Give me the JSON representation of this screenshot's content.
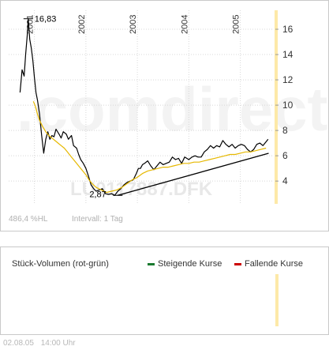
{
  "chart_data": {
    "type": "line",
    "x_ticks": [
      "2001",
      "2002",
      "2003",
      "2004",
      "2005"
    ],
    "y_ticks": [
      4,
      6,
      8,
      10,
      12,
      14,
      16
    ],
    "ylim": [
      2.2,
      17.5
    ],
    "xlim": [
      2000.5,
      2005.65
    ],
    "series": [
      {
        "color": "#000000",
        "x": [
          2000.72,
          2000.76,
          2000.8,
          2000.83,
          2000.86,
          2000.88,
          2000.91,
          2000.94,
          2000.97,
          2001.0,
          2001.03,
          2001.06,
          2001.1,
          2001.14,
          2001.18,
          2001.22,
          2001.26,
          2001.3,
          2001.34,
          2001.38,
          2001.42,
          2001.48,
          2001.52,
          2001.56,
          2001.62,
          2001.66,
          2001.72,
          2001.76,
          2001.82,
          2001.86,
          2001.9,
          2001.95,
          2002.0,
          2002.05,
          2002.1,
          2002.15,
          2002.2,
          2002.26,
          2002.32,
          2002.38,
          2002.44,
          2002.5,
          2002.56,
          2002.62,
          2002.68,
          2002.74,
          2002.8,
          2002.86,
          2002.92,
          2002.98,
          2003.02,
          2003.06,
          2003.1,
          2003.14,
          2003.2,
          2003.26,
          2003.32,
          2003.38,
          2003.44,
          2003.5,
          2003.56,
          2003.62,
          2003.68,
          2003.74,
          2003.8,
          2003.86,
          2003.92,
          2004.0,
          2004.06,
          2004.12,
          2004.18,
          2004.24,
          2004.3,
          2004.36,
          2004.42,
          2004.48,
          2004.54,
          2004.6,
          2004.66,
          2004.72,
          2004.78,
          2004.84,
          2004.9,
          2004.96,
          2005.02,
          2005.08,
          2005.14,
          2005.2,
          2005.26,
          2005.32,
          2005.38,
          2005.44,
          2005.5,
          2005.54
        ],
        "values": [
          11.0,
          12.8,
          12.3,
          14.0,
          15.5,
          16.83,
          15.2,
          14.5,
          13.5,
          12.2,
          11.0,
          10.4,
          9.3,
          7.6,
          6.2,
          7.3,
          7.9,
          7.3,
          7.6,
          7.5,
          8.1,
          7.7,
          7.4,
          7.9,
          7.7,
          7.3,
          7.6,
          6.8,
          6.6,
          6.1,
          5.7,
          5.4,
          5.0,
          4.4,
          3.7,
          3.4,
          3.2,
          3.3,
          3.4,
          3.0,
          2.95,
          3.0,
          2.87,
          3.2,
          3.4,
          3.7,
          3.9,
          4.0,
          4.1,
          4.6,
          5.0,
          5.0,
          5.3,
          5.4,
          5.6,
          5.2,
          4.9,
          5.2,
          5.5,
          5.3,
          5.4,
          5.5,
          5.9,
          5.7,
          5.8,
          5.4,
          5.9,
          5.7,
          5.9,
          6.0,
          5.9,
          5.9,
          6.3,
          6.5,
          6.8,
          6.6,
          6.8,
          6.7,
          7.2,
          6.9,
          6.7,
          6.9,
          6.6,
          6.8,
          6.9,
          6.8,
          6.5,
          6.3,
          6.5,
          6.9,
          7.0,
          6.8,
          7.1,
          7.3
        ]
      },
      {
        "color": "#e6b800",
        "x": [
          2000.98,
          2001.02,
          2001.06,
          2001.1,
          2001.16,
          2001.22,
          2001.28,
          2001.34,
          2001.4,
          2001.46,
          2001.52,
          2001.58,
          2001.64,
          2001.7,
          2001.76,
          2001.82,
          2001.88,
          2001.94,
          2002.0,
          2002.06,
          2002.12,
          2002.2,
          2002.3,
          2002.4,
          2002.5,
          2002.6,
          2002.7,
          2002.8,
          2002.9,
          2003.0,
          2003.1,
          2003.2,
          2003.3,
          2003.4,
          2003.5,
          2003.6,
          2003.7,
          2003.8,
          2003.9,
          2004.0,
          2004.1,
          2004.2,
          2004.3,
          2004.4,
          2004.5,
          2004.6,
          2004.7,
          2004.8,
          2004.9,
          2005.0,
          2005.1,
          2005.2,
          2005.3,
          2005.4,
          2005.5
        ],
        "values": [
          10.3,
          9.9,
          9.3,
          8.8,
          8.3,
          7.9,
          7.6,
          7.4,
          7.2,
          7.0,
          6.8,
          6.6,
          6.3,
          6.0,
          5.7,
          5.4,
          5.1,
          4.8,
          4.5,
          4.1,
          3.8,
          3.5,
          3.3,
          3.1,
          3.2,
          3.3,
          3.5,
          3.8,
          4.1,
          4.3,
          4.6,
          4.8,
          4.9,
          5.0,
          5.1,
          5.1,
          5.2,
          5.3,
          5.4,
          5.4,
          5.5,
          5.5,
          5.6,
          5.7,
          5.8,
          5.9,
          6.0,
          6.1,
          6.1,
          6.2,
          6.3,
          6.3,
          6.4,
          6.5,
          6.6
        ]
      }
    ],
    "trend_line": {
      "x": [
        2002.62,
        2005.55
      ],
      "values": [
        2.87,
        6.2
      ]
    },
    "max_label": "16,83",
    "max_point": {
      "x": 2000.88,
      "value": 16.83
    },
    "min_label": "2,87",
    "min_point": {
      "x": 2002.62,
      "value": 2.87
    },
    "watermark_brand": ".comdirect",
    "watermark_isin": "LU0117887.DFK"
  },
  "price_panel": {
    "perf_label": "486,4 %HL",
    "interval_label": "Intervall: 1 Tag"
  },
  "volume_panel": {
    "title": "Stück-Volumen (rot-grün)",
    "legend_up": "Steigende Kurse",
    "legend_down": "Fallende Kurse",
    "color_up": "#1a7a30",
    "color_down": "#cc0000"
  },
  "footer": {
    "date": "02.08.05",
    "time": "14:00 Uhr"
  },
  "colors": {
    "highlight_band": "#fde9a8",
    "axis_text": "#333333"
  }
}
